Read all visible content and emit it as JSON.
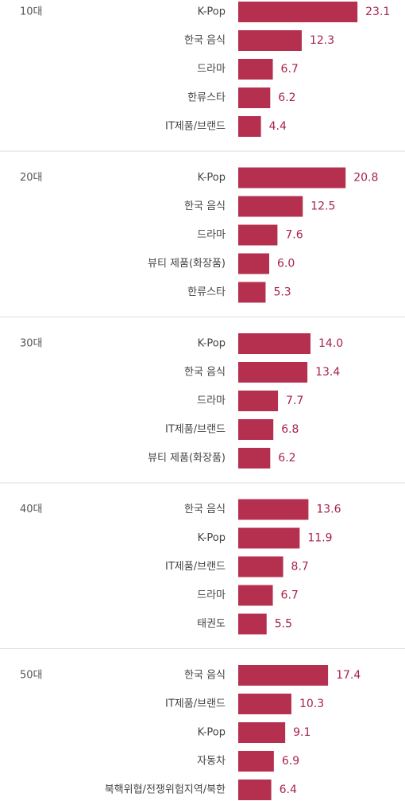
{
  "chart_data": [
    {
      "type": "bar",
      "title": "10대",
      "categories": [
        "K-Pop",
        "한국 음식",
        "드라마",
        "한류스타",
        "IT제품/브랜드"
      ],
      "values": [
        23.1,
        12.3,
        6.7,
        6.2,
        4.4
      ],
      "value_labels": [
        "23.1",
        "12.3",
        "6.7",
        "6.2",
        "4.4"
      ],
      "color": "#b5304f"
    },
    {
      "type": "bar",
      "title": "20대",
      "categories": [
        "K-Pop",
        "한국 음식",
        "드라마",
        "뷰티 제품(화장품)",
        "한류스타"
      ],
      "values": [
        20.8,
        12.5,
        7.6,
        6.0,
        5.3
      ],
      "value_labels": [
        "20.8",
        "12.5",
        "7.6",
        "6.0",
        "5.3"
      ],
      "color": "#b5304f"
    },
    {
      "type": "bar",
      "title": "30대",
      "categories": [
        "K-Pop",
        "한국 음식",
        "드라마",
        "IT제품/브랜드",
        "뷰티 제품(화장품)"
      ],
      "values": [
        14.0,
        13.4,
        7.7,
        6.8,
        6.2
      ],
      "value_labels": [
        "14.0",
        "13.4",
        "7.7",
        "6.8",
        "6.2"
      ],
      "color": "#b5304f"
    },
    {
      "type": "bar",
      "title": "40대",
      "categories": [
        "한국 음식",
        "K-Pop",
        "IT제품/브랜드",
        "드라마",
        "태권도"
      ],
      "values": [
        13.6,
        11.9,
        8.7,
        6.7,
        5.5
      ],
      "value_labels": [
        "13.6",
        "11.9",
        "8.7",
        "6.7",
        "5.5"
      ],
      "color": "#b5304f"
    },
    {
      "type": "bar",
      "title": "50대",
      "categories": [
        "한국 음식",
        "IT제품/브랜드",
        "K-Pop",
        "자동차",
        "북핵위협/전쟁위험지역/북한"
      ],
      "values": [
        17.4,
        10.3,
        9.1,
        6.9,
        6.4
      ],
      "value_labels": [
        "17.4",
        "10.3",
        "9.1",
        "6.9",
        "6.4"
      ],
      "color": "#b5304f"
    }
  ]
}
